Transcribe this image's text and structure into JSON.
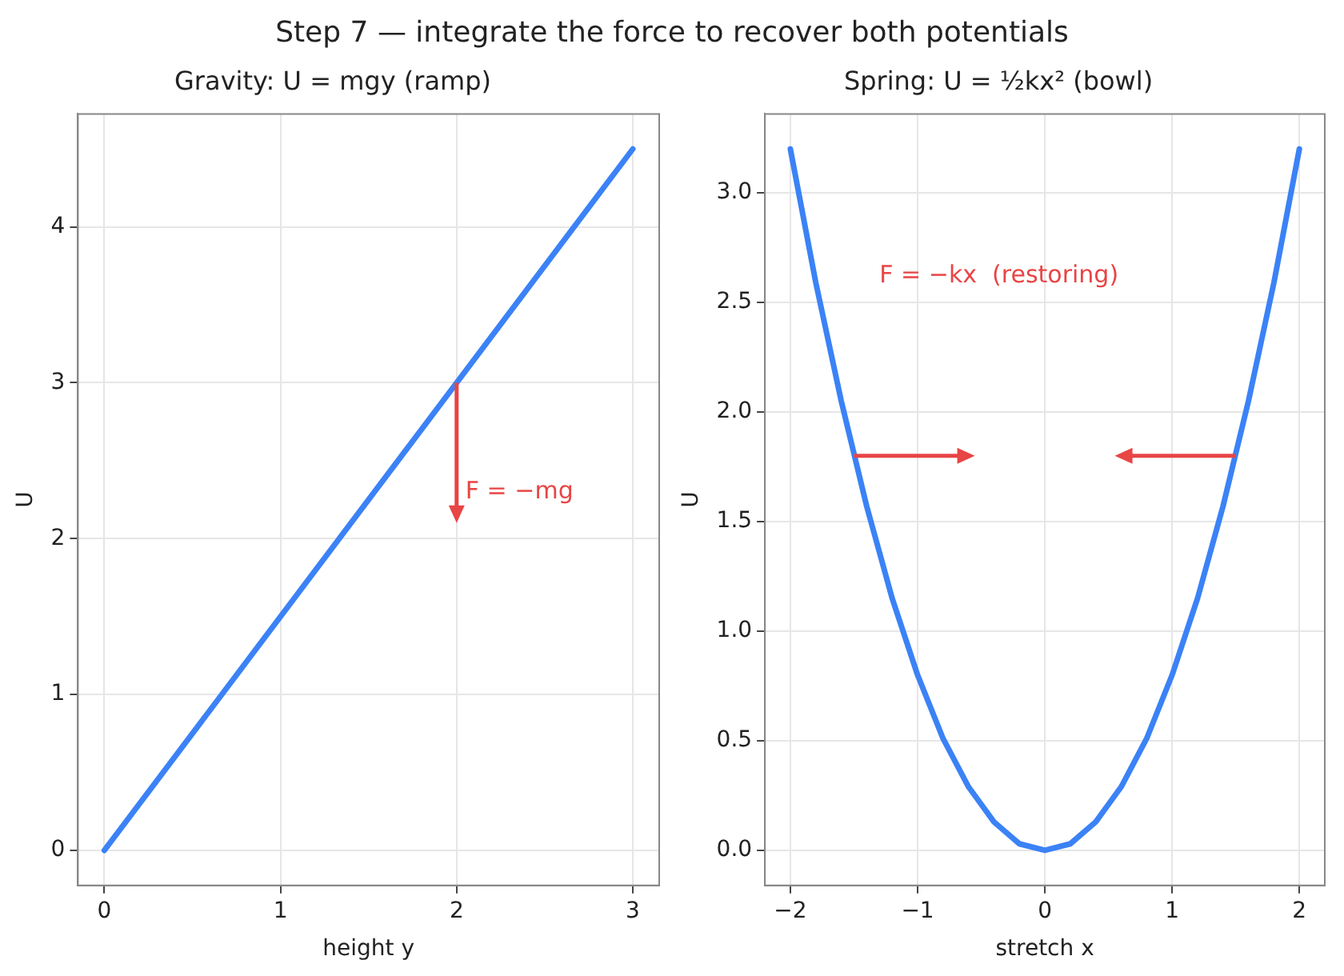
{
  "chart_data": [
    {
      "type": "line",
      "title": "Gravity: U = mgy (ramp)",
      "xlabel": "height y",
      "ylabel": "U",
      "x": [
        0,
        3
      ],
      "series": [
        {
          "color": "#3b82f6",
          "values": [
            0,
            4.5
          ]
        }
      ],
      "xlim": [
        -0.15,
        3.15
      ],
      "ylim": [
        -0.225,
        4.725
      ],
      "xticks": [
        0,
        1,
        2,
        3
      ],
      "yticks": [
        0,
        1,
        2,
        3,
        4
      ],
      "grid": true,
      "marker": "none",
      "line_style": "solid",
      "annotations": [
        "Step 7 — integrate the force to recover both potentials",
        "F = −mg"
      ]
    },
    {
      "type": "line",
      "title": "Spring: U = ½kx² (bowl)",
      "xlabel": "stretch x",
      "ylabel": "U",
      "x": [
        -2,
        -1.8,
        -1.6,
        -1.4,
        -1.2,
        -1,
        -0.8,
        -0.6,
        -0.4,
        -0.2,
        0,
        0.2,
        0.4,
        0.6,
        0.8,
        1,
        1.2,
        1.4,
        1.6,
        1.8,
        2
      ],
      "series": [
        {
          "color": "#3b82f6",
          "values": [
            3.2,
            2.59,
            2.05,
            1.57,
            1.15,
            0.8,
            0.51,
            0.29,
            0.13,
            0.03,
            0,
            0.03,
            0.13,
            0.29,
            0.51,
            0.8,
            1.15,
            1.57,
            2.05,
            2.59,
            3.2
          ]
        }
      ],
      "xlim": [
        -2.2,
        2.2
      ],
      "ylim": [
        -0.16,
        3.36
      ],
      "xticks": [
        {
          "value": -2,
          "label": "−2"
        },
        {
          "value": -1,
          "label": "−1"
        },
        0,
        1,
        2
      ],
      "yticks": [
        {
          "value": 0,
          "label": "0.0"
        },
        0.5,
        {
          "value": 1,
          "label": "1.0"
        },
        1.5,
        {
          "value": 2,
          "label": "2.0"
        },
        2.5,
        {
          "value": 3,
          "label": "3.0"
        }
      ],
      "grid": true,
      "marker": "none",
      "line_style": "solid",
      "annotations": [
        "F = −kx  (restoring)"
      ]
    }
  ]
}
